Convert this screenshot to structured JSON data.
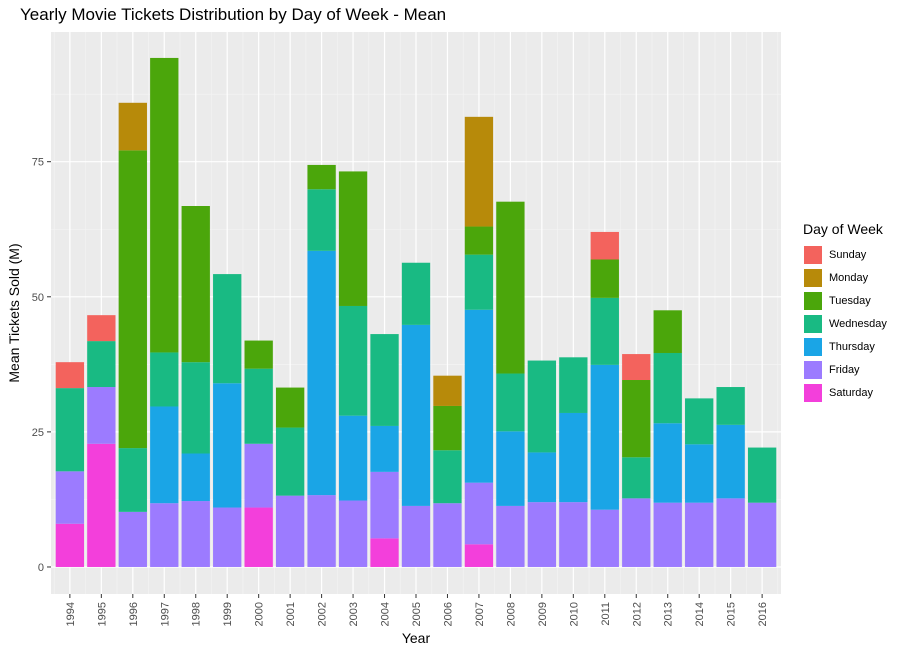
{
  "chart_data": {
    "type": "bar",
    "stacked": true,
    "title": "Yearly Movie Tickets Distribution by Day of Week - Mean",
    "xlabel": "Year",
    "ylabel": "Mean Tickets Sold (M)",
    "ylim": [
      -5,
      99
    ],
    "yticks": [
      0,
      25,
      50,
      75
    ],
    "grid": true,
    "legend_title": "Day of Week",
    "legend_position": "right",
    "categories": [
      "1994",
      "1995",
      "1996",
      "1997",
      "1998",
      "1999",
      "2000",
      "2001",
      "2002",
      "2003",
      "2004",
      "2005",
      "2006",
      "2007",
      "2008",
      "2009",
      "2010",
      "2011",
      "2012",
      "2013",
      "2014",
      "2015",
      "2016"
    ],
    "series": [
      {
        "name": "Saturday",
        "color": "#F33FDB",
        "values": [
          8,
          22.8,
          0,
          0,
          0,
          0,
          11,
          0,
          0,
          0,
          5.3,
          0,
          0,
          4.2,
          0,
          0,
          0,
          0,
          0,
          0,
          0,
          0,
          0
        ]
      },
      {
        "name": "Friday",
        "color": "#9C7BFF",
        "values": [
          9.7,
          10.5,
          10.2,
          11.8,
          12.2,
          11,
          11.8,
          13.2,
          13.3,
          12.3,
          12.3,
          11.3,
          11.8,
          11.4,
          11.3,
          12,
          12,
          10.6,
          12.7,
          11.9,
          11.9,
          12.7,
          11.9
        ]
      },
      {
        "name": "Thursday",
        "color": "#1AA5E6",
        "values": [
          0,
          0,
          0,
          17.9,
          8.8,
          23,
          0,
          0,
          45.2,
          15.7,
          8.5,
          33.5,
          0,
          32,
          13.8,
          9.2,
          16.5,
          26.8,
          0,
          14.7,
          10.8,
          13.6,
          0
        ]
      },
      {
        "name": "Wednesday",
        "color": "#19BA83",
        "values": [
          15.4,
          8.5,
          11.8,
          10,
          16.9,
          20.2,
          13.9,
          12.6,
          11.4,
          20.3,
          17,
          11.5,
          9.8,
          10.2,
          10.7,
          17,
          10.3,
          12.4,
          7.6,
          13,
          8.5,
          7,
          10.2
        ]
      },
      {
        "name": "Tuesday",
        "color": "#4BA60B",
        "values": [
          0,
          0,
          55.1,
          54.5,
          28.9,
          0,
          5.2,
          7.4,
          4.5,
          24.9,
          0,
          0,
          8.2,
          5.2,
          31.8,
          0,
          0,
          7.1,
          14.3,
          7.9,
          0,
          0,
          0
        ]
      },
      {
        "name": "Monday",
        "color": "#B78A0A",
        "values": [
          0,
          0,
          8.8,
          0,
          0,
          0,
          0,
          0,
          0,
          0,
          0,
          0,
          5.6,
          20.3,
          0,
          0,
          0,
          0,
          0,
          0,
          0,
          0,
          0
        ]
      },
      {
        "name": "Sunday",
        "color": "#F3635D",
        "values": [
          4.8,
          4.8,
          0,
          0,
          0,
          0,
          0,
          0,
          0,
          0,
          0,
          0,
          0,
          0,
          0,
          0,
          0,
          5.1,
          4.8,
          0,
          0,
          0,
          0
        ]
      }
    ],
    "legend_order": [
      "Sunday",
      "Monday",
      "Tuesday",
      "Wednesday",
      "Thursday",
      "Friday",
      "Saturday"
    ]
  }
}
